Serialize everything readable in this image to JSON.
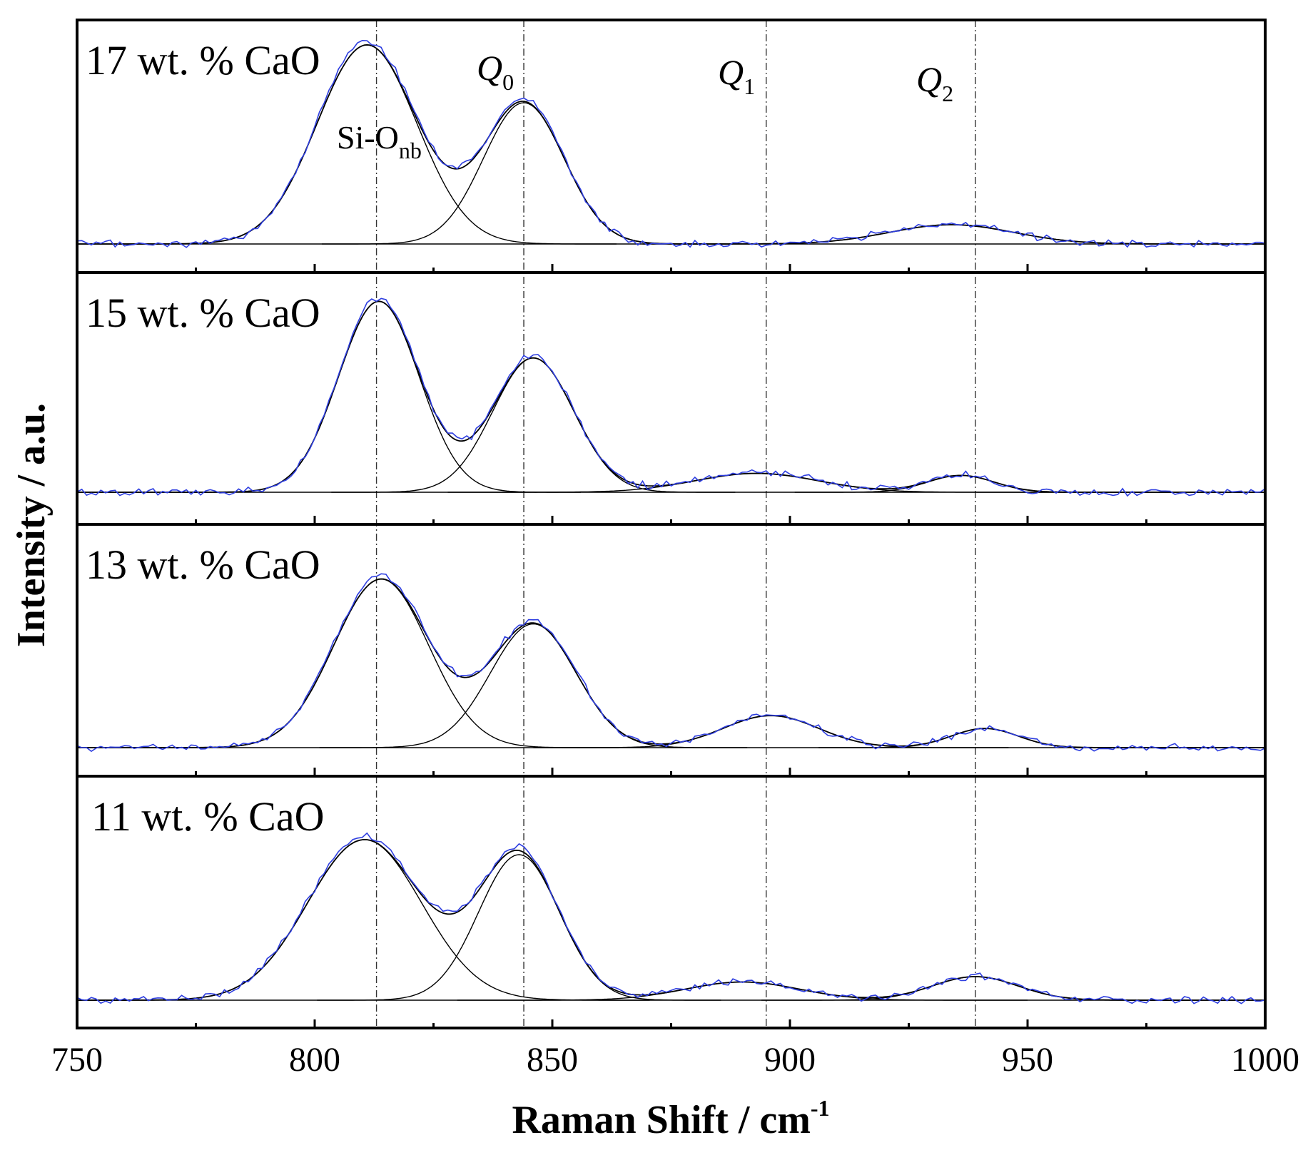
{
  "chart_data": {
    "type": "line",
    "xlabel": "Raman Shift / cm",
    "xlabel_sup": "-1",
    "ylabel": "Intensity / a.u.",
    "xlim": [
      750,
      1000
    ],
    "xticks_major": [
      750,
      800,
      850,
      900,
      950,
      1000
    ],
    "xticks_minor": [
      775,
      825,
      875,
      925,
      975
    ],
    "reference_lines": [
      {
        "x": 813,
        "label": "Si-O",
        "sub": "nb"
      },
      {
        "x": 844,
        "label": "Q",
        "sub": "0"
      },
      {
        "x": 895,
        "label": "Q",
        "sub": "1"
      },
      {
        "x": 939,
        "label": "Q",
        "sub": "2"
      }
    ],
    "panels": [
      {
        "label": "17 wt. % CaO",
        "ymax": 1.0,
        "peaks": [
          {
            "center": 811,
            "height": 0.93,
            "sigma": 10.5
          },
          {
            "center": 844,
            "height": 0.66,
            "sigma": 8.5
          },
          {
            "center": 934,
            "height": 0.09,
            "sigma": 13
          }
        ]
      },
      {
        "label": "15 wt. % CaO",
        "ymax": 1.0,
        "peaks": [
          {
            "center": 813.5,
            "height": 0.91,
            "sigma": 8.5
          },
          {
            "center": 846,
            "height": 0.64,
            "sigma": 8.5
          },
          {
            "center": 893,
            "height": 0.09,
            "sigma": 13
          },
          {
            "center": 936,
            "height": 0.08,
            "sigma": 7
          }
        ]
      },
      {
        "label": "13 wt. % CaO",
        "ymax": 1.0,
        "peaks": [
          {
            "center": 814,
            "height": 0.79,
            "sigma": 10
          },
          {
            "center": 846,
            "height": 0.58,
            "sigma": 9
          },
          {
            "center": 896,
            "height": 0.15,
            "sigma": 10
          },
          {
            "center": 941,
            "height": 0.09,
            "sigma": 7
          }
        ]
      },
      {
        "label": "11 wt. % CaO",
        "ymax": 1.0,
        "peaks": [
          {
            "center": 810.5,
            "height": 0.75,
            "sigma": 12
          },
          {
            "center": 843,
            "height": 0.68,
            "sigma": 8.5
          },
          {
            "center": 890,
            "height": 0.085,
            "sigma": 12
          },
          {
            "center": 939,
            "height": 0.11,
            "sigma": 9
          }
        ]
      }
    ]
  }
}
